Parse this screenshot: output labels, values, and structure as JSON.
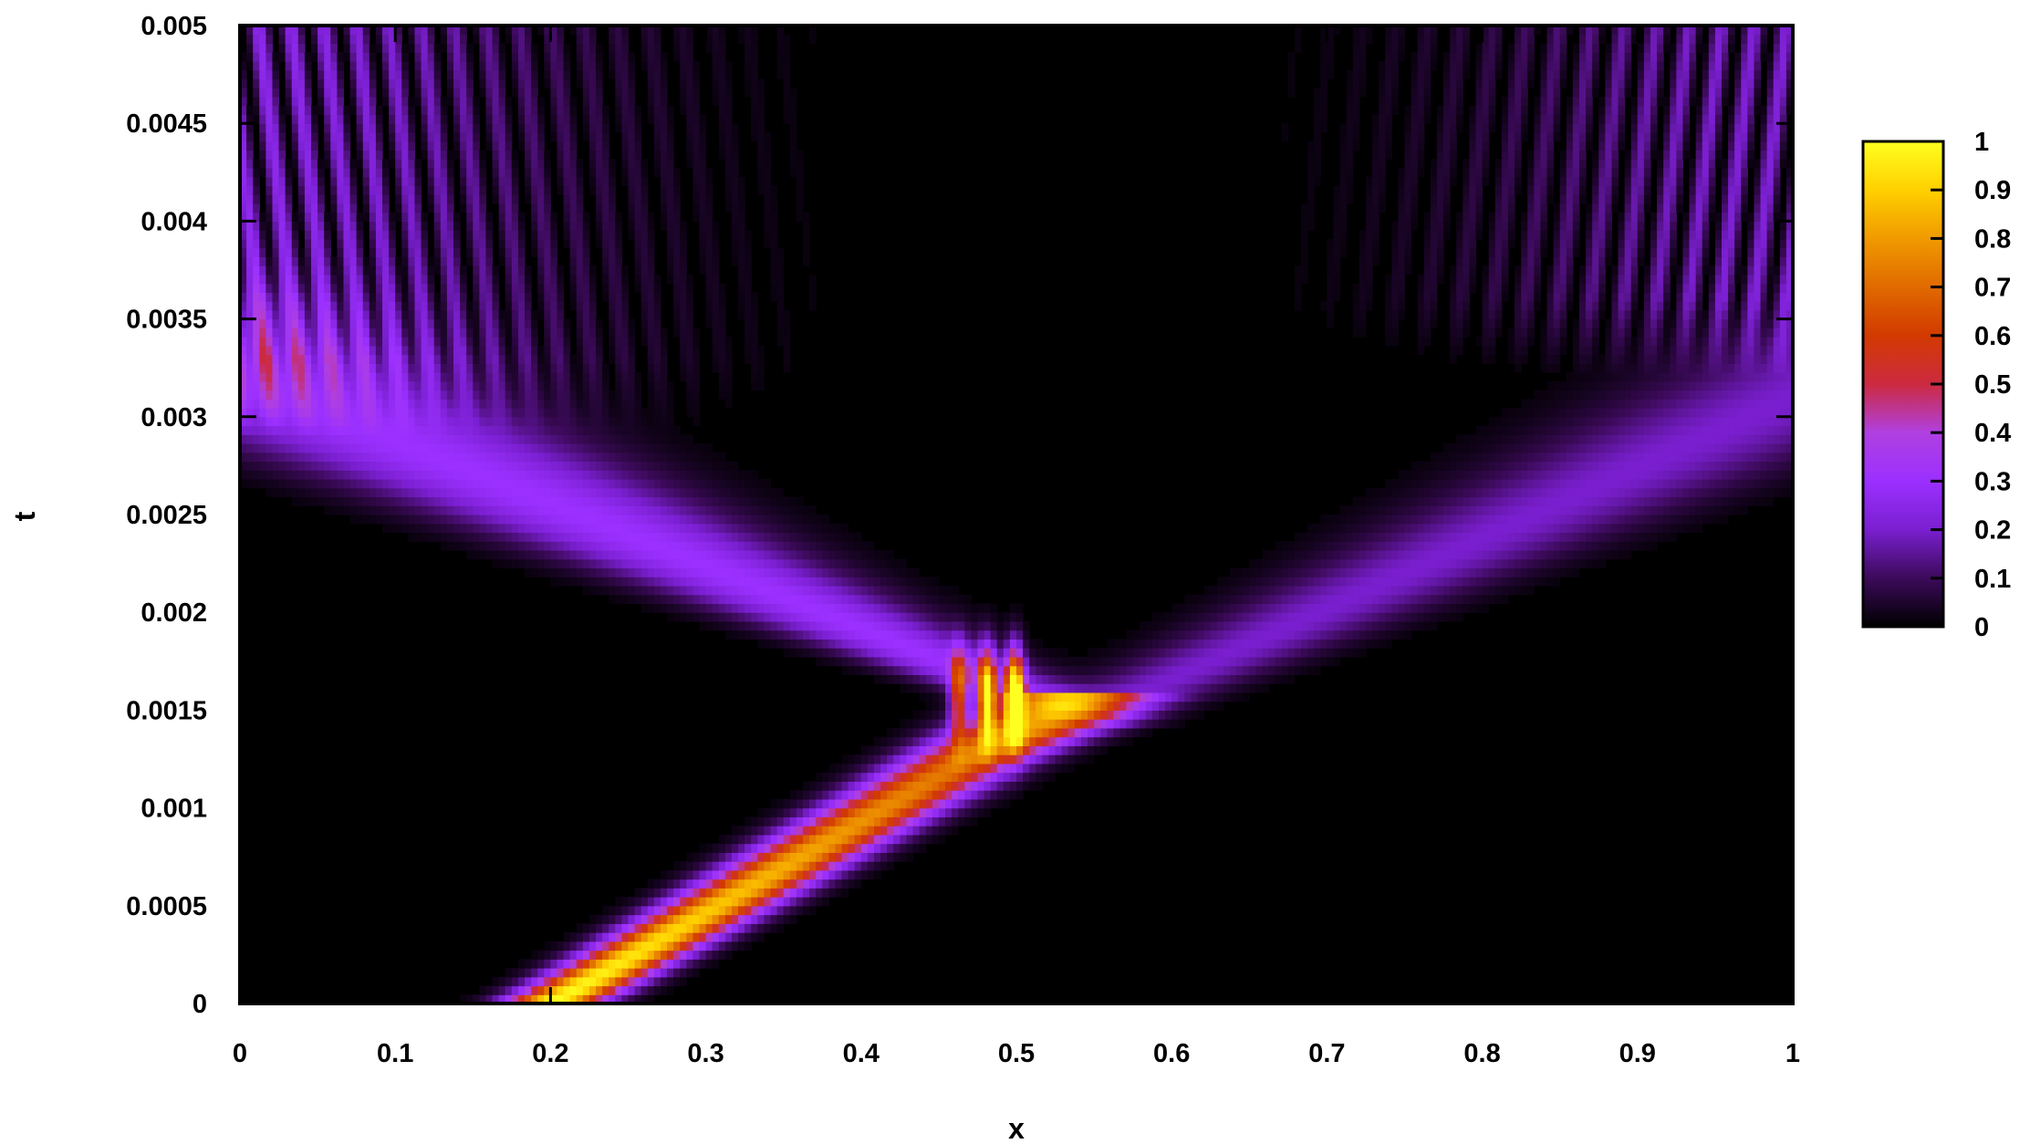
{
  "chart_data": {
    "type": "heatmap",
    "title": "",
    "xlabel": "x",
    "ylabel": "t",
    "xlim": [
      0,
      1
    ],
    "ylim": [
      0,
      0.005
    ],
    "x_ticks": [
      "0",
      "0.1",
      "0.2",
      "0.3",
      "0.4",
      "0.5",
      "0.6",
      "0.7",
      "0.8",
      "0.9",
      "1"
    ],
    "y_ticks": [
      "0",
      "0.0005",
      "0.001",
      "0.0015",
      "0.002",
      "0.0025",
      "0.003",
      "0.0035",
      "0.004",
      "0.0045",
      "0.005"
    ],
    "colorbar": {
      "range": [
        0,
        1
      ],
      "ticks": [
        "0",
        "0.1",
        "0.2",
        "0.3",
        "0.4",
        "0.5",
        "0.6",
        "0.7",
        "0.8",
        "0.9",
        "1"
      ],
      "colors": [
        "#000000",
        "#3c0a5a",
        "#7a1fd0",
        "#9b30ff",
        "#b040e0",
        "#cc2a40",
        "#d23a00",
        "#e06a00",
        "#f09a00",
        "#ffd000",
        "#ffff20"
      ]
    },
    "features": [
      {
        "name": "initial packet",
        "x": [
          0.17,
          0.25
        ],
        "t": [
          0,
          0.0001
        ],
        "value": 1.0
      },
      {
        "name": "incoming beam",
        "from": [
          0.2,
          0
        ],
        "to": [
          0.5,
          0.0014
        ],
        "value": 0.65
      },
      {
        "name": "interference fringes",
        "x": [
          0.45,
          0.5
        ],
        "t": [
          0.0013,
          0.0019
        ],
        "value": 0.9
      },
      {
        "name": "reflected beam",
        "from": [
          0.5,
          0.0016
        ],
        "to": [
          0.0,
          0.0032
        ],
        "value": 0.25
      },
      {
        "name": "transmitted beam",
        "from": [
          0.5,
          0.0013
        ],
        "to": [
          1.0,
          0.0031
        ],
        "value": 0.2
      },
      {
        "name": "left wall fringes",
        "x": [
          0,
          0.3
        ],
        "t": [
          0.003,
          0.005
        ],
        "value": 0.25
      },
      {
        "name": "right wall fringes",
        "x": [
          0.7,
          1.0
        ],
        "t": [
          0.0035,
          0.005
        ],
        "value": 0.2
      }
    ]
  }
}
